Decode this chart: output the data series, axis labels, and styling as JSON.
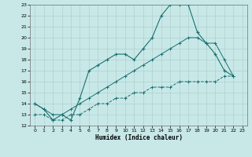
{
  "bg_color": "#c8e8e8",
  "grid_color": "#b0d0d0",
  "line_color": "#1a7070",
  "xlabel": "Humidex (Indice chaleur)",
  "xlim": [
    -0.5,
    23.5
  ],
  "ylim": [
    12,
    23
  ],
  "yticks": [
    12,
    13,
    14,
    15,
    16,
    17,
    18,
    19,
    20,
    21,
    22,
    23
  ],
  "xticks": [
    0,
    1,
    2,
    3,
    4,
    5,
    6,
    7,
    8,
    9,
    10,
    11,
    12,
    13,
    14,
    15,
    16,
    17,
    18,
    19,
    20,
    21,
    22,
    23
  ],
  "line1_x": [
    0,
    1,
    2,
    3,
    4,
    5,
    6,
    7,
    8,
    9,
    10,
    11,
    12,
    13,
    14,
    15,
    16,
    17,
    18,
    19,
    20,
    21,
    22
  ],
  "line1_y": [
    14,
    13.5,
    12.5,
    13.0,
    12.5,
    14.5,
    17.0,
    17.5,
    18.0,
    18.5,
    18.5,
    18.0,
    19.0,
    20.0,
    22.0,
    23.0,
    23.0,
    23.0,
    20.5,
    19.5,
    18.5,
    17.0,
    16.5
  ],
  "line2_x": [
    0,
    1,
    2,
    3,
    4,
    5,
    6,
    7,
    8,
    9,
    10,
    11,
    12,
    13,
    14,
    15,
    16,
    17,
    18,
    19,
    20,
    21,
    22
  ],
  "line2_y": [
    14.0,
    13.5,
    13.0,
    13.0,
    13.5,
    14.0,
    14.5,
    15.0,
    15.5,
    16.0,
    16.5,
    17.0,
    17.5,
    18.0,
    18.5,
    19.0,
    19.5,
    20.0,
    20.0,
    19.5,
    19.5,
    18.0,
    16.5
  ],
  "line3_x": [
    0,
    1,
    2,
    3,
    4,
    5,
    6,
    7,
    8,
    9,
    10,
    11,
    12,
    13,
    14,
    15,
    16,
    17,
    18,
    19,
    20,
    21,
    22
  ],
  "line3_y": [
    13.0,
    13.0,
    12.5,
    12.5,
    13.0,
    13.0,
    13.5,
    14.0,
    14.0,
    14.5,
    14.5,
    15.0,
    15.0,
    15.5,
    15.5,
    15.5,
    16.0,
    16.0,
    16.0,
    16.0,
    16.0,
    16.5,
    16.5
  ]
}
